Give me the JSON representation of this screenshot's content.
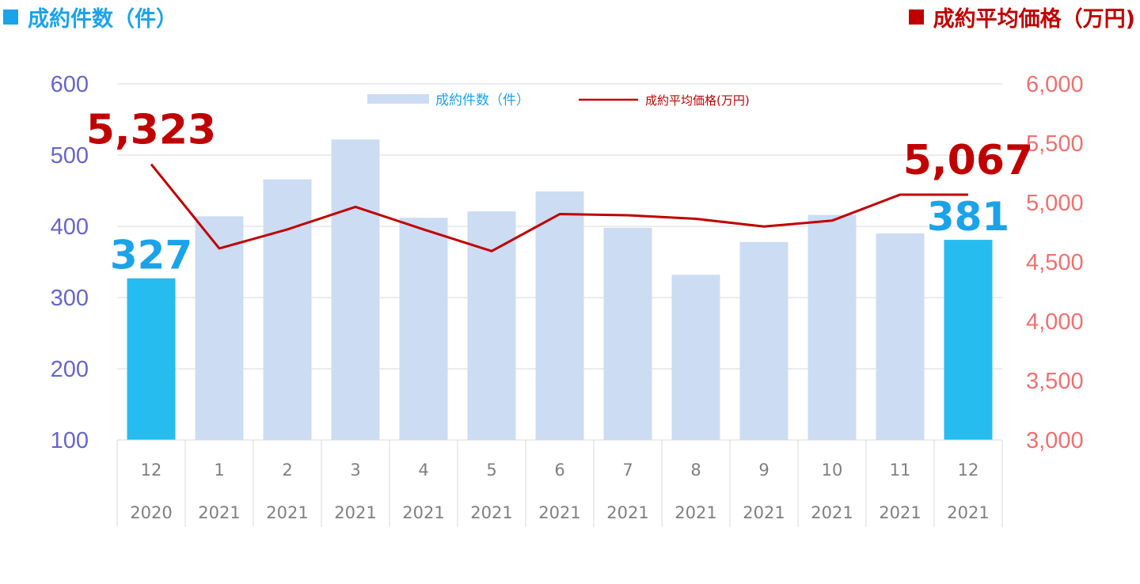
{
  "header": {
    "left_title": "成約件数（件）",
    "right_title": "成約平均価格（万円)"
  },
  "colors": {
    "bar": "#ccdcf3",
    "bar_highlight": "#26bcf0",
    "line": "#c00000",
    "left_axis": "#6666cc",
    "right_axis": "#f07070",
    "count_label": "#1aa3e8",
    "price_label": "#c00000",
    "grid": "#d9d9d9"
  },
  "chart_data": {
    "type": "bar",
    "categories": [
      "12",
      "1",
      "2",
      "3",
      "4",
      "5",
      "6",
      "7",
      "8",
      "9",
      "10",
      "11",
      "12"
    ],
    "years": [
      "2020",
      "2021",
      "2021",
      "2021",
      "2021",
      "2021",
      "2021",
      "2021",
      "2021",
      "2021",
      "2021",
      "2021",
      "2021"
    ],
    "series": [
      {
        "name": "成約件数（件）",
        "type": "bar",
        "axis": "left",
        "values": [
          327,
          414,
          466,
          522,
          412,
          421,
          449,
          398,
          332,
          378,
          416,
          390,
          381
        ],
        "highlight": [
          0,
          12
        ]
      },
      {
        "name": "成約平均価格(万円)",
        "type": "line",
        "axis": "right",
        "values": [
          5323,
          4614,
          4774,
          4964,
          4774,
          4591,
          4903,
          4893,
          4863,
          4798,
          4848,
          5067,
          5067
        ]
      }
    ],
    "left_axis": {
      "ylim": [
        100,
        600
      ],
      "ticks": [
        "100",
        "200",
        "300",
        "400",
        "500",
        "600"
      ]
    },
    "right_axis": {
      "ylim": [
        3000,
        6000
      ],
      "ticks": [
        "3,000",
        "3,500",
        "4,000",
        "4,500",
        "5,000",
        "5,500",
        "6,000"
      ]
    },
    "legend": {
      "position": "top-center",
      "bar_label": "成約件数（件）",
      "line_label": "成約平均価格(万円)"
    },
    "annotations": [
      {
        "text": "327",
        "series": "count",
        "index": 0
      },
      {
        "text": "381",
        "series": "count",
        "index": 12
      },
      {
        "text": "5,323",
        "series": "price",
        "index": 0
      },
      {
        "text": "5,067",
        "series": "price",
        "index": 12
      }
    ],
    "grid": true
  }
}
